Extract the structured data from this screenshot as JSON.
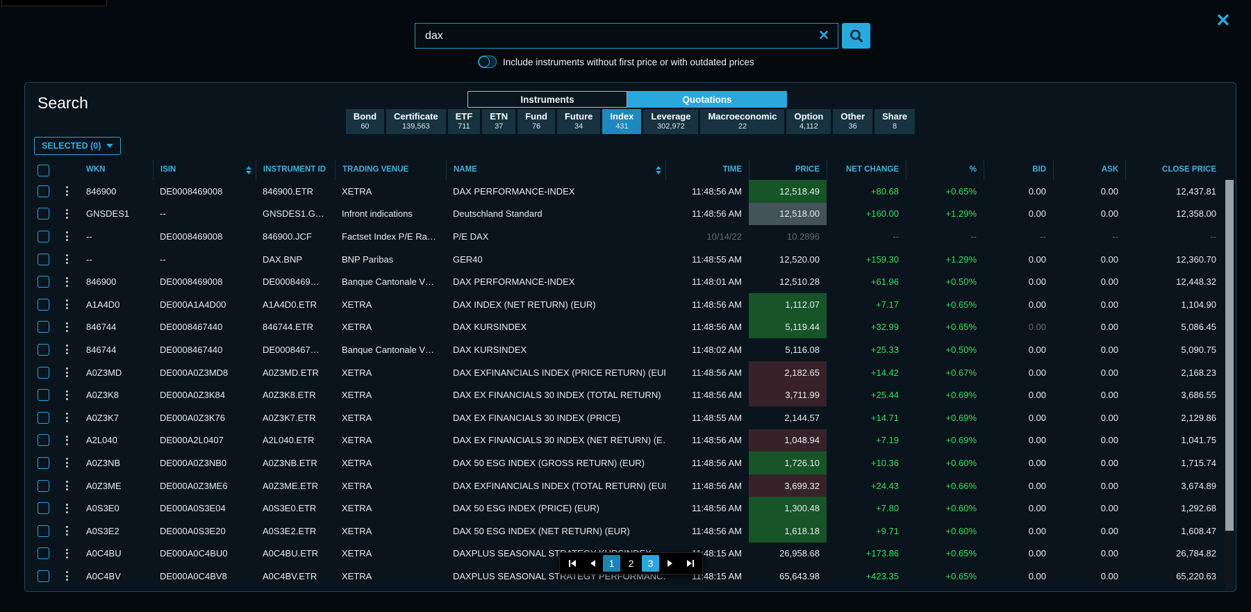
{
  "window": {
    "close_icon": "✕"
  },
  "search": {
    "value": "dax",
    "clear_icon": "✕",
    "toggle_label": "Include instruments without first price or with outdated prices",
    "toggle_state": "off"
  },
  "panel": {
    "title": "Search",
    "selected_dropdown": "SELECTED (0)"
  },
  "view_tabs": [
    {
      "label": "Instruments",
      "selected": false
    },
    {
      "label": "Quotations",
      "selected": true
    }
  ],
  "category_tabs": [
    {
      "label": "Bond",
      "count": "60",
      "selected": false
    },
    {
      "label": "Certificate",
      "count": "139,563",
      "selected": false
    },
    {
      "label": "ETF",
      "count": "711",
      "selected": false
    },
    {
      "label": "ETN",
      "count": "37",
      "selected": false
    },
    {
      "label": "Fund",
      "count": "76",
      "selected": false
    },
    {
      "label": "Future",
      "count": "34",
      "selected": false
    },
    {
      "label": "Index",
      "count": "431",
      "selected": true
    },
    {
      "label": "Leverage",
      "count": "302,972",
      "selected": false
    },
    {
      "label": "Macroeconomic",
      "count": "22",
      "selected": false
    },
    {
      "label": "Option",
      "count": "4,112",
      "selected": false
    },
    {
      "label": "Other",
      "count": "36",
      "selected": false
    },
    {
      "label": "Share",
      "count": "8",
      "selected": false
    }
  ],
  "table": {
    "columns": [
      "WKN",
      "ISIN",
      "INSTRUMENT ID",
      "TRADING VENUE",
      "NAME",
      "TIME",
      "PRICE",
      "NET CHANGE",
      "%",
      "BID",
      "ASK",
      "CLOSE PRICE"
    ],
    "rows": [
      {
        "wkn": "846900",
        "isin": "DE0008469008",
        "id": "846900.ETR",
        "venue": "XETRA",
        "name": "DAX PERFORMANCE-INDEX",
        "time": "11:48:56 AM",
        "price": "12,518.49",
        "net": "+80.68",
        "pct": "+0.65%",
        "bid": "0.00",
        "ask": "0.00",
        "close": "12,437.81",
        "price_bg": "green",
        "dim": false,
        "bid_dim": false
      },
      {
        "wkn": "GNSDES1",
        "isin": "--",
        "id": "GNSDES1.G…",
        "venue": "Infront indications",
        "name": "Deutschland Standard",
        "time": "11:48:56 AM",
        "price": "12,518.00",
        "net": "+160.00",
        "pct": "+1.29%",
        "bid": "0.00",
        "ask": "0.00",
        "close": "12,358.00",
        "price_bg": "gray",
        "dim": false,
        "bid_dim": false
      },
      {
        "wkn": "--",
        "isin": "DE0008469008",
        "id": "846900.JCF",
        "venue": "Factset Index P/E Ra…",
        "name": "P/E DAX",
        "time": "10/14/22",
        "price": "10.2896",
        "net": "--",
        "pct": "--",
        "bid": "--",
        "ask": "--",
        "close": "--",
        "price_bg": "none",
        "dim": true,
        "bid_dim": false
      },
      {
        "wkn": "--",
        "isin": "--",
        "id": "DAX.BNP",
        "venue": "BNP Paribas",
        "name": "GER40",
        "time": "11:48:55 AM",
        "price": "12,520.00",
        "net": "+159.30",
        "pct": "+1.29%",
        "bid": "0.00",
        "ask": "0.00",
        "close": "12,360.70",
        "price_bg": "none",
        "dim": false,
        "bid_dim": false
      },
      {
        "wkn": "846900",
        "isin": "DE0008469008",
        "id": "DE0008469…",
        "venue": "Banque Cantonale V…",
        "name": "DAX PERFORMANCE-INDEX",
        "time": "11:48:01 AM",
        "price": "12,510.28",
        "net": "+61.96",
        "pct": "+0.50%",
        "bid": "0.00",
        "ask": "0.00",
        "close": "12,448.32",
        "price_bg": "none",
        "dim": false,
        "bid_dim": false
      },
      {
        "wkn": "A1A4D0",
        "isin": "DE000A1A4D00",
        "id": "A1A4D0.ETR",
        "venue": "XETRA",
        "name": "DAX INDEX (NET RETURN) (EUR)",
        "time": "11:48:56 AM",
        "price": "1,112.07",
        "net": "+7.17",
        "pct": "+0.65%",
        "bid": "0.00",
        "ask": "0.00",
        "close": "1,104.90",
        "price_bg": "green",
        "dim": false,
        "bid_dim": false
      },
      {
        "wkn": "846744",
        "isin": "DE0008467440",
        "id": "846744.ETR",
        "venue": "XETRA",
        "name": "DAX KURSINDEX",
        "time": "11:48:56 AM",
        "price": "5,119.44",
        "net": "+32.99",
        "pct": "+0.65%",
        "bid": "0.00",
        "ask": "0.00",
        "close": "5,086.45",
        "price_bg": "green",
        "dim": false,
        "bid_dim": true
      },
      {
        "wkn": "846744",
        "isin": "DE0008467440",
        "id": "DE0008467…",
        "venue": "Banque Cantonale V…",
        "name": "DAX KURSINDEX",
        "time": "11:48:02 AM",
        "price": "5,116.08",
        "net": "+25.33",
        "pct": "+0.50%",
        "bid": "0.00",
        "ask": "0.00",
        "close": "5,090.75",
        "price_bg": "none",
        "dim": false,
        "bid_dim": false
      },
      {
        "wkn": "A0Z3MD",
        "isin": "DE000A0Z3MD8",
        "id": "A0Z3MD.ETR",
        "venue": "XETRA",
        "name": "DAX EXFINANCIALS INDEX (PRICE RETURN) (EUR)",
        "time": "11:48:56 AM",
        "price": "2,182.65",
        "net": "+14.42",
        "pct": "+0.67%",
        "bid": "0.00",
        "ask": "0.00",
        "close": "2,168.23",
        "price_bg": "maroon",
        "dim": false,
        "bid_dim": false
      },
      {
        "wkn": "A0Z3K8",
        "isin": "DE000A0Z3K84",
        "id": "A0Z3K8.ETR",
        "venue": "XETRA",
        "name": "DAX EX FINANCIALS 30 INDEX (TOTAL RETURN)",
        "time": "11:48:56 AM",
        "price": "3,711.99",
        "net": "+25.44",
        "pct": "+0.69%",
        "bid": "0.00",
        "ask": "0.00",
        "close": "3,686.55",
        "price_bg": "maroon",
        "dim": false,
        "bid_dim": false
      },
      {
        "wkn": "A0Z3K7",
        "isin": "DE000A0Z3K76",
        "id": "A0Z3K7.ETR",
        "venue": "XETRA",
        "name": "DAX EX FINANCIALS 30 INDEX (PRICE)",
        "time": "11:48:55 AM",
        "price": "2,144.57",
        "net": "+14.71",
        "pct": "+0.69%",
        "bid": "0.00",
        "ask": "0.00",
        "close": "2,129.86",
        "price_bg": "none",
        "dim": false,
        "bid_dim": false
      },
      {
        "wkn": "A2L040",
        "isin": "DE000A2L0407",
        "id": "A2L040.ETR",
        "venue": "XETRA",
        "name": "DAX EX FINANCIALS 30 INDEX (NET RETURN) (E…",
        "time": "11:48:56 AM",
        "price": "1,048.94",
        "net": "+7.19",
        "pct": "+0.69%",
        "bid": "0.00",
        "ask": "0.00",
        "close": "1,041.75",
        "price_bg": "maroon",
        "dim": false,
        "bid_dim": false
      },
      {
        "wkn": "A0Z3NB",
        "isin": "DE000A0Z3NB0",
        "id": "A0Z3NB.ETR",
        "venue": "XETRA",
        "name": "DAX 50 ESG INDEX (GROSS RETURN) (EUR)",
        "time": "11:48:56 AM",
        "price": "1,726.10",
        "net": "+10.36",
        "pct": "+0.60%",
        "bid": "0.00",
        "ask": "0.00",
        "close": "1,715.74",
        "price_bg": "green",
        "dim": false,
        "bid_dim": false
      },
      {
        "wkn": "A0Z3ME",
        "isin": "DE000A0Z3ME6",
        "id": "A0Z3ME.ETR",
        "venue": "XETRA",
        "name": "DAX EXFINANCIALS INDEX (TOTAL RETURN) (EUR)",
        "time": "11:48:56 AM",
        "price": "3,699.32",
        "net": "+24.43",
        "pct": "+0.66%",
        "bid": "0.00",
        "ask": "0.00",
        "close": "3,674.89",
        "price_bg": "maroon",
        "dim": false,
        "bid_dim": false
      },
      {
        "wkn": "A0S3E0",
        "isin": "DE000A0S3E04",
        "id": "A0S3E0.ETR",
        "venue": "XETRA",
        "name": "DAX 50 ESG INDEX (PRICE) (EUR)",
        "time": "11:48:56 AM",
        "price": "1,300.48",
        "net": "+7.80",
        "pct": "+0.60%",
        "bid": "0.00",
        "ask": "0.00",
        "close": "1,292.68",
        "price_bg": "green",
        "dim": false,
        "bid_dim": false
      },
      {
        "wkn": "A0S3E2",
        "isin": "DE000A0S3E20",
        "id": "A0S3E2.ETR",
        "venue": "XETRA",
        "name": "DAX 50 ESG INDEX (NET RETURN) (EUR)",
        "time": "11:48:56 AM",
        "price": "1,618.18",
        "net": "+9.71",
        "pct": "+0.60%",
        "bid": "0.00",
        "ask": "0.00",
        "close": "1,608.47",
        "price_bg": "green",
        "dim": false,
        "bid_dim": false
      },
      {
        "wkn": "A0C4BU",
        "isin": "DE000A0C4BU0",
        "id": "A0C4BU.ETR",
        "venue": "XETRA",
        "name": "DAXPLUS SEASONAL STRATEGY KURSINDEX",
        "time": "11:48:15 AM",
        "price": "26,958.68",
        "net": "+173.86",
        "pct": "+0.65%",
        "bid": "0.00",
        "ask": "0.00",
        "close": "26,784.82",
        "price_bg": "none",
        "dim": false,
        "bid_dim": false
      },
      {
        "wkn": "A0C4BV",
        "isin": "DE000A0C4BV8",
        "id": "A0C4BV.ETR",
        "venue": "XETRA",
        "name": "DAXPLUS SEASONAL STRATEGY PERFORMANC…",
        "time": "11:48:15 AM",
        "price": "65,643.98",
        "net": "+423.35",
        "pct": "+0.65%",
        "bid": "0.00",
        "ask": "0.00",
        "close": "65,220.63",
        "price_bg": "none",
        "dim": false,
        "bid_dim": false
      }
    ]
  },
  "pagination": {
    "pages": [
      {
        "label": "1",
        "style": "num-active"
      },
      {
        "label": "2",
        "style": ""
      },
      {
        "label": "3",
        "style": "num-bright"
      }
    ]
  },
  "colors": {
    "accent": "#29a8dd",
    "positive_text": "#36df5f",
    "price_up_bg": "#175427",
    "price_down_bg": "#38222a",
    "price_flash_bg": "#44525a"
  }
}
